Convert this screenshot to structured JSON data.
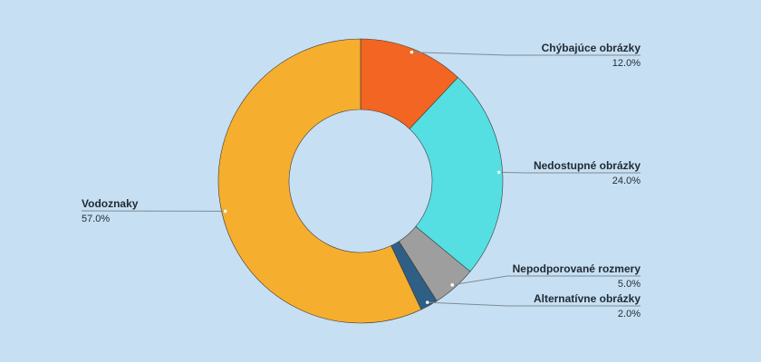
{
  "chart_data": {
    "type": "pie",
    "donut": true,
    "title": "",
    "start_angle_deg": 0,
    "direction": "clockwise",
    "slices": [
      {
        "label": "Chýbajúce obrázky",
        "value": 12.0,
        "value_label": "12.0%",
        "color": "#f26522"
      },
      {
        "label": "Nedostupné obrázky",
        "value": 24.0,
        "value_label": "24.0%",
        "color": "#56dfe2"
      },
      {
        "label": "Nepodporované rozmery",
        "value": 5.0,
        "value_label": "5.0%",
        "color": "#9e9e9e"
      },
      {
        "label": "Alternatívne obrázky",
        "value": 2.0,
        "value_label": "2.0%",
        "color": "#2f5f85"
      },
      {
        "label": "Vodoznaky",
        "value": 57.0,
        "value_label": "57.0%",
        "color": "#f5ae2e"
      }
    ]
  }
}
